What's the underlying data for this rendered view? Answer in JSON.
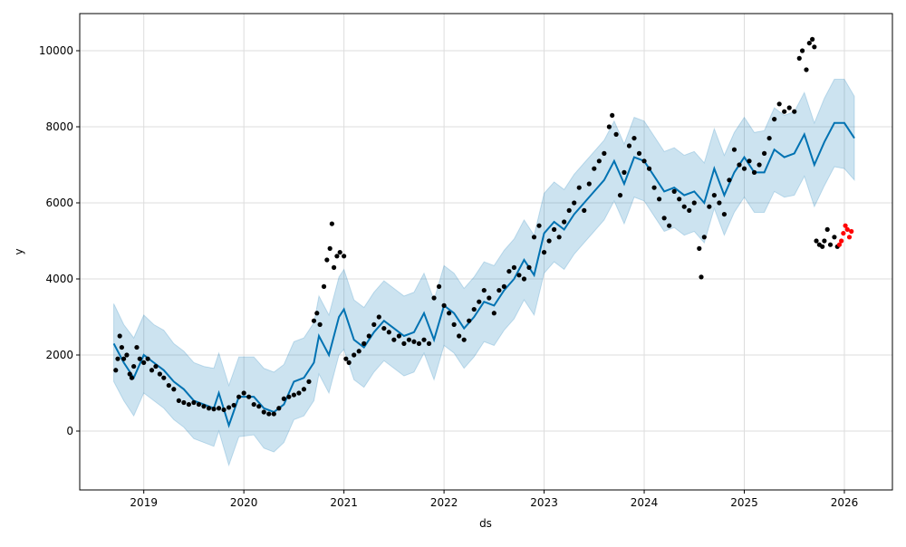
{
  "chart_data": {
    "type": "line",
    "title": "",
    "xlabel": "ds",
    "ylabel": "y",
    "xlim": [
      2018.36,
      2026.48
    ],
    "ylim": [
      -1548,
      10976
    ],
    "grid": true,
    "x_ticks": [
      2019,
      2020,
      2021,
      2022,
      2023,
      2024,
      2025,
      2026
    ],
    "x_tick_labels": [
      "2019",
      "2020",
      "2021",
      "2022",
      "2023",
      "2024",
      "2025",
      "2026"
    ],
    "y_ticks": [
      0,
      2000,
      4000,
      6000,
      8000,
      10000
    ],
    "y_tick_labels": [
      "0",
      "2000",
      "4000",
      "6000",
      "8000",
      "10000"
    ],
    "colors": {
      "forecast": "#0072B2",
      "band": "#0072B2",
      "actual": "#000000",
      "recent": "#ff0000",
      "grid": "#dddddd"
    },
    "forecast": {
      "x": [
        2018.7,
        2018.8,
        2018.9,
        2019.0,
        2019.1,
        2019.2,
        2019.3,
        2019.4,
        2019.5,
        2019.6,
        2019.7,
        2019.75,
        2019.85,
        2019.95,
        2020.1,
        2020.2,
        2020.3,
        2020.4,
        2020.5,
        2020.6,
        2020.7,
        2020.75,
        2020.85,
        2020.95,
        2021.0,
        2021.1,
        2021.2,
        2021.3,
        2021.4,
        2021.5,
        2021.6,
        2021.7,
        2021.8,
        2021.9,
        2022.0,
        2022.1,
        2022.2,
        2022.3,
        2022.4,
        2022.5,
        2022.6,
        2022.7,
        2022.8,
        2022.9,
        2023.0,
        2023.1,
        2023.2,
        2023.3,
        2023.4,
        2023.5,
        2023.6,
        2023.7,
        2023.8,
        2023.9,
        2024.0,
        2024.1,
        2024.2,
        2024.3,
        2024.4,
        2024.5,
        2024.6,
        2024.7,
        2024.8,
        2024.9,
        2025.0,
        2025.1,
        2025.2,
        2025.3,
        2025.4,
        2025.5,
        2025.6,
        2025.7,
        2025.8,
        2025.9,
        2026.0,
        2026.1
      ],
      "yhat": [
        2300,
        1800,
        1400,
        2000,
        1800,
        1600,
        1300,
        1100,
        800,
        700,
        600,
        1000,
        150,
        900,
        900,
        600,
        500,
        700,
        1300,
        1400,
        1800,
        2500,
        2000,
        3000,
        3200,
        2400,
        2200,
        2600,
        2900,
        2700,
        2500,
        2600,
        3100,
        2400,
        3300,
        3100,
        2700,
        3000,
        3400,
        3300,
        3700,
        4000,
        4500,
        4100,
        5200,
        5500,
        5300,
        5700,
        6000,
        6300,
        6600,
        7100,
        6500,
        7200,
        7100,
        6700,
        6300,
        6400,
        6200,
        6300,
        6000,
        6900,
        6200,
        6800,
        7200,
        6800,
        6800,
        7400,
        7200,
        7300,
        7800,
        7000,
        7600,
        8100,
        8100,
        7700
      ],
      "lower": [
        1300,
        800,
        400,
        1000,
        800,
        600,
        300,
        100,
        -200,
        -300,
        -400,
        0,
        -900,
        -150,
        -100,
        -450,
        -550,
        -300,
        300,
        400,
        800,
        1500,
        1000,
        2000,
        2150,
        1350,
        1150,
        1550,
        1850,
        1650,
        1450,
        1550,
        2050,
        1350,
        2250,
        2050,
        1650,
        1950,
        2350,
        2250,
        2650,
        2950,
        3450,
        3050,
        4150,
        4450,
        4250,
        4650,
        4950,
        5250,
        5550,
        6050,
        5450,
        6150,
        6050,
        5650,
        5250,
        5350,
        5150,
        5250,
        4950,
        5850,
        5150,
        5750,
        6150,
        5750,
        5750,
        6300,
        6150,
        6200,
        6700,
        5900,
        6450,
        6950,
        6900,
        6600
      ],
      "upper": [
        3350,
        2800,
        2450,
        3050,
        2800,
        2650,
        2300,
        2100,
        1800,
        1700,
        1650,
        2050,
        1200,
        1950,
        1950,
        1650,
        1550,
        1750,
        2350,
        2450,
        2850,
        3550,
        3050,
        4050,
        4250,
        3450,
        3250,
        3650,
        3950,
        3750,
        3550,
        3650,
        4150,
        3450,
        4350,
        4150,
        3750,
        4050,
        4450,
        4350,
        4750,
        5050,
        5550,
        5150,
        6250,
        6550,
        6350,
        6750,
        7050,
        7350,
        7650,
        8150,
        7550,
        8250,
        8150,
        7750,
        7350,
        7450,
        7250,
        7350,
        7050,
        7950,
        7250,
        7850,
        8250,
        7850,
        7900,
        8500,
        8300,
        8400,
        8900,
        8100,
        8750,
        9250,
        9250,
        8800
      ]
    },
    "actual": [
      [
        2018.72,
        1600
      ],
      [
        2018.74,
        1900
      ],
      [
        2018.76,
        2500
      ],
      [
        2018.78,
        2200
      ],
      [
        2018.8,
        1900
      ],
      [
        2018.83,
        2000
      ],
      [
        2018.86,
        1500
      ],
      [
        2018.88,
        1400
      ],
      [
        2018.9,
        1700
      ],
      [
        2018.93,
        2200
      ],
      [
        2018.96,
        1900
      ],
      [
        2019.0,
        1800
      ],
      [
        2019.04,
        1900
      ],
      [
        2019.08,
        1600
      ],
      [
        2019.12,
        1700
      ],
      [
        2019.16,
        1500
      ],
      [
        2019.2,
        1400
      ],
      [
        2019.25,
        1200
      ],
      [
        2019.3,
        1100
      ],
      [
        2019.35,
        800
      ],
      [
        2019.4,
        750
      ],
      [
        2019.45,
        700
      ],
      [
        2019.5,
        750
      ],
      [
        2019.55,
        700
      ],
      [
        2019.6,
        650
      ],
      [
        2019.65,
        600
      ],
      [
        2019.7,
        580
      ],
      [
        2019.75,
        600
      ],
      [
        2019.8,
        560
      ],
      [
        2019.85,
        620
      ],
      [
        2019.9,
        680
      ],
      [
        2019.95,
        900
      ],
      [
        2020.0,
        1000
      ],
      [
        2020.05,
        900
      ],
      [
        2020.1,
        700
      ],
      [
        2020.15,
        650
      ],
      [
        2020.2,
        500
      ],
      [
        2020.25,
        450
      ],
      [
        2020.3,
        450
      ],
      [
        2020.35,
        600
      ],
      [
        2020.4,
        850
      ],
      [
        2020.45,
        900
      ],
      [
        2020.5,
        950
      ],
      [
        2020.55,
        1000
      ],
      [
        2020.6,
        1100
      ],
      [
        2020.65,
        1300
      ],
      [
        2020.7,
        2900
      ],
      [
        2020.73,
        3100
      ],
      [
        2020.76,
        2800
      ],
      [
        2020.8,
        3800
      ],
      [
        2020.83,
        4500
      ],
      [
        2020.86,
        4800
      ],
      [
        2020.88,
        5450
      ],
      [
        2020.9,
        4300
      ],
      [
        2020.93,
        4600
      ],
      [
        2020.96,
        4700
      ],
      [
        2021.0,
        4600
      ],
      [
        2021.02,
        1900
      ],
      [
        2021.05,
        1800
      ],
      [
        2021.1,
        2000
      ],
      [
        2021.15,
        2100
      ],
      [
        2021.2,
        2300
      ],
      [
        2021.25,
        2500
      ],
      [
        2021.3,
        2800
      ],
      [
        2021.35,
        3000
      ],
      [
        2021.4,
        2700
      ],
      [
        2021.45,
        2600
      ],
      [
        2021.5,
        2400
      ],
      [
        2021.55,
        2500
      ],
      [
        2021.6,
        2300
      ],
      [
        2021.65,
        2400
      ],
      [
        2021.7,
        2350
      ],
      [
        2021.75,
        2300
      ],
      [
        2021.8,
        2400
      ],
      [
        2021.85,
        2300
      ],
      [
        2021.9,
        3500
      ],
      [
        2021.95,
        3800
      ],
      [
        2022.0,
        3300
      ],
      [
        2022.05,
        3100
      ],
      [
        2022.1,
        2800
      ],
      [
        2022.15,
        2500
      ],
      [
        2022.2,
        2400
      ],
      [
        2022.25,
        2900
      ],
      [
        2022.3,
        3200
      ],
      [
        2022.35,
        3400
      ],
      [
        2022.4,
        3700
      ],
      [
        2022.45,
        3500
      ],
      [
        2022.5,
        3100
      ],
      [
        2022.55,
        3700
      ],
      [
        2022.6,
        3800
      ],
      [
        2022.65,
        4200
      ],
      [
        2022.7,
        4300
      ],
      [
        2022.75,
        4100
      ],
      [
        2022.8,
        4000
      ],
      [
        2022.85,
        4300
      ],
      [
        2022.9,
        5100
      ],
      [
        2022.95,
        5400
      ],
      [
        2023.0,
        4700
      ],
      [
        2023.05,
        5000
      ],
      [
        2023.1,
        5300
      ],
      [
        2023.15,
        5100
      ],
      [
        2023.2,
        5500
      ],
      [
        2023.25,
        5800
      ],
      [
        2023.3,
        6000
      ],
      [
        2023.35,
        6400
      ],
      [
        2023.4,
        5800
      ],
      [
        2023.45,
        6500
      ],
      [
        2023.5,
        6900
      ],
      [
        2023.55,
        7100
      ],
      [
        2023.6,
        7300
      ],
      [
        2023.65,
        8000
      ],
      [
        2023.68,
        8300
      ],
      [
        2023.72,
        7800
      ],
      [
        2023.76,
        6200
      ],
      [
        2023.8,
        6800
      ],
      [
        2023.85,
        7500
      ],
      [
        2023.9,
        7700
      ],
      [
        2023.95,
        7300
      ],
      [
        2024.0,
        7100
      ],
      [
        2024.05,
        6900
      ],
      [
        2024.1,
        6400
      ],
      [
        2024.15,
        6100
      ],
      [
        2024.2,
        5600
      ],
      [
        2024.25,
        5400
      ],
      [
        2024.3,
        6300
      ],
      [
        2024.35,
        6100
      ],
      [
        2024.4,
        5900
      ],
      [
        2024.45,
        5800
      ],
      [
        2024.5,
        6000
      ],
      [
        2024.55,
        4800
      ],
      [
        2024.57,
        4050
      ],
      [
        2024.6,
        5100
      ],
      [
        2024.65,
        5900
      ],
      [
        2024.7,
        6200
      ],
      [
        2024.75,
        6000
      ],
      [
        2024.8,
        5700
      ],
      [
        2024.85,
        6600
      ],
      [
        2024.9,
        7400
      ],
      [
        2024.95,
        7000
      ],
      [
        2025.0,
        6900
      ],
      [
        2025.05,
        7100
      ],
      [
        2025.1,
        6800
      ],
      [
        2025.15,
        7000
      ],
      [
        2025.2,
        7300
      ],
      [
        2025.25,
        7700
      ],
      [
        2025.3,
        8200
      ],
      [
        2025.35,
        8600
      ],
      [
        2025.4,
        8400
      ],
      [
        2025.45,
        8500
      ],
      [
        2025.5,
        8400
      ],
      [
        2025.55,
        9800
      ],
      [
        2025.58,
        10000
      ],
      [
        2025.62,
        9500
      ],
      [
        2025.65,
        10200
      ],
      [
        2025.68,
        10300
      ],
      [
        2025.7,
        10100
      ],
      [
        2025.72,
        5000
      ],
      [
        2025.75,
        4900
      ],
      [
        2025.78,
        4850
      ],
      [
        2025.8,
        5000
      ],
      [
        2025.83,
        5300
      ],
      [
        2025.86,
        4900
      ],
      [
        2025.9,
        5100
      ],
      [
        2025.93,
        4850
      ]
    ],
    "recent": [
      [
        2025.95,
        4900
      ],
      [
        2025.97,
        5000
      ],
      [
        2025.99,
        5200
      ],
      [
        2026.01,
        5400
      ],
      [
        2026.03,
        5300
      ],
      [
        2026.05,
        5100
      ],
      [
        2026.07,
        5250
      ]
    ]
  }
}
